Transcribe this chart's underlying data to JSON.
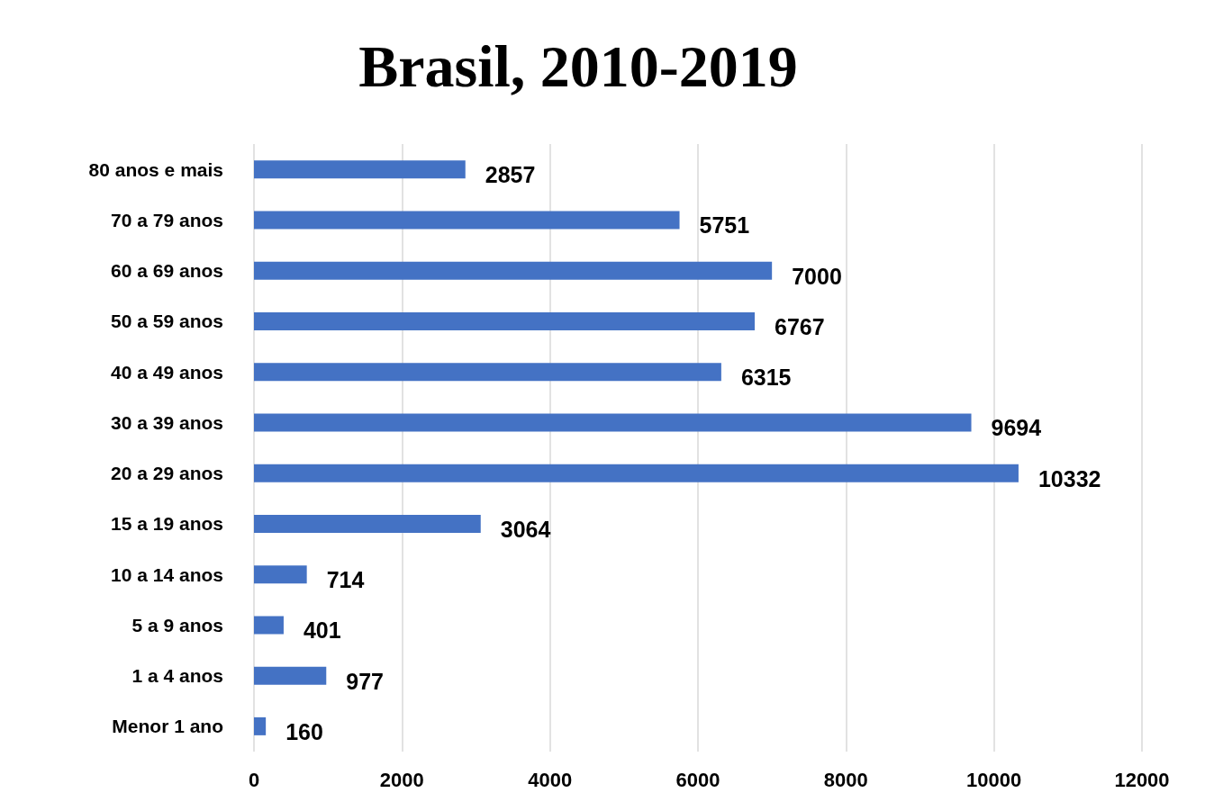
{
  "chart_data": {
    "type": "bar",
    "orientation": "horizontal",
    "title": "Brasil, 2010-2019",
    "categories": [
      "80 anos e mais",
      "70 a 79 anos",
      "60 a 69 anos",
      "50 a 59 anos",
      "40 a 49 anos",
      "30 a 39 anos",
      "20 a 29 anos",
      "15 a 19 anos",
      "10 a 14 anos",
      "5 a 9 anos",
      "1 a 4 anos",
      "Menor 1 ano"
    ],
    "values": [
      2857,
      5751,
      7000,
      6767,
      6315,
      9694,
      10332,
      3064,
      714,
      401,
      977,
      160
    ],
    "color": "#4472c4",
    "xlim": [
      0,
      12000
    ],
    "xticks": [
      0,
      2000,
      4000,
      6000,
      8000,
      10000,
      12000
    ],
    "grid": "x",
    "data_labels": true
  }
}
